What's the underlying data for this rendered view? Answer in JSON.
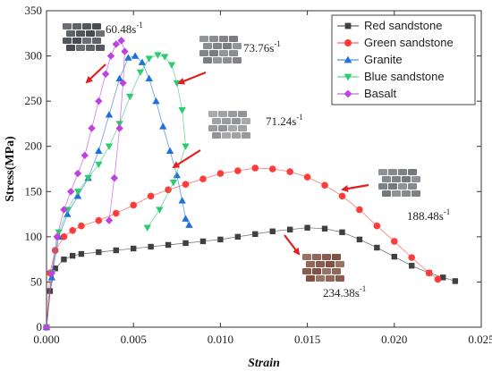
{
  "chart_data": {
    "type": "scatter",
    "title": "",
    "xlabel": "Strain",
    "ylabel": "Stress(MPa)",
    "xlim": [
      0.0,
      0.025
    ],
    "ylim": [
      0,
      350
    ],
    "xticks": [
      "0.000",
      "0.005",
      "0.010",
      "0.015",
      "0.020",
      "0.025"
    ],
    "yticks": [
      "0",
      "50",
      "100",
      "150",
      "200",
      "250",
      "300",
      "350"
    ],
    "grid": false,
    "legend_position": "top-right",
    "series": [
      {
        "name": "Red sandstone",
        "color": "#404040",
        "marker": "square",
        "x": [
          0.0,
          0.0002,
          0.0005,
          0.001,
          0.0015,
          0.002,
          0.003,
          0.004,
          0.005,
          0.006,
          0.007,
          0.008,
          0.009,
          0.01,
          0.011,
          0.012,
          0.013,
          0.014,
          0.015,
          0.016,
          0.017,
          0.018,
          0.019,
          0.02,
          0.021,
          0.022,
          0.0228,
          0.0235
        ],
        "y": [
          0,
          40,
          65,
          75,
          79,
          81,
          83,
          85,
          87,
          89,
          91,
          93,
          95,
          97,
          100,
          103,
          106,
          108,
          110,
          109,
          105,
          97,
          88,
          78,
          68,
          60,
          55,
          51
        ]
      },
      {
        "name": "Green sandstone",
        "color": "#ff3b3b",
        "marker": "circle",
        "x": [
          0.0,
          0.0002,
          0.0005,
          0.001,
          0.0015,
          0.002,
          0.003,
          0.004,
          0.005,
          0.006,
          0.007,
          0.008,
          0.009,
          0.01,
          0.011,
          0.012,
          0.013,
          0.014,
          0.015,
          0.016,
          0.017,
          0.018,
          0.019,
          0.02,
          0.021,
          0.022,
          0.0225
        ],
        "y": [
          0,
          60,
          85,
          100,
          107,
          112,
          118,
          126,
          135,
          145,
          152,
          158,
          164,
          170,
          173,
          176,
          175,
          172,
          166,
          157,
          145,
          130,
          112,
          95,
          77,
          60,
          53
        ]
      },
      {
        "name": "Granite",
        "color": "#1f6fe0",
        "marker": "triangle-up",
        "x": [
          0.0,
          0.0003,
          0.0007,
          0.0012,
          0.0018,
          0.0024,
          0.003,
          0.0036,
          0.0042,
          0.0047,
          0.0051,
          0.0055,
          0.0059,
          0.0063,
          0.0067,
          0.0071,
          0.0075,
          0.0078,
          0.008,
          0.0082
        ],
        "y": [
          0,
          55,
          100,
          125,
          145,
          165,
          195,
          235,
          275,
          298,
          300,
          293,
          275,
          250,
          222,
          195,
          168,
          140,
          120,
          113
        ]
      },
      {
        "name": "Blue sandstone",
        "color": "#2ecc71",
        "marker": "triangle-down",
        "x": [
          0.0,
          0.0003,
          0.0007,
          0.0012,
          0.0018,
          0.0024,
          0.003,
          0.0036,
          0.0042,
          0.0048,
          0.0054,
          0.0059,
          0.0064,
          0.0068,
          0.0072,
          0.0075,
          0.0078,
          0.008,
          0.0073,
          0.0065,
          0.0058
        ],
        "y": [
          0,
          60,
          105,
          130,
          150,
          165,
          180,
          200,
          225,
          255,
          282,
          297,
          301,
          299,
          290,
          270,
          240,
          200,
          160,
          130,
          110
        ]
      },
      {
        "name": "Basalt",
        "color": "#c040e0",
        "marker": "diamond",
        "x": [
          0.0,
          0.0003,
          0.0006,
          0.001,
          0.0014,
          0.0018,
          0.0022,
          0.0026,
          0.003,
          0.0034,
          0.0037,
          0.004,
          0.0043,
          0.0045,
          0.0044,
          0.0042,
          0.0039,
          0.0036
        ],
        "y": [
          0,
          60,
          100,
          130,
          150,
          170,
          190,
          220,
          250,
          280,
          300,
          313,
          317,
          305,
          270,
          220,
          165,
          118
        ]
      }
    ],
    "annotations": [
      {
        "text": "60.48s",
        "exponent": "-1",
        "series": "Basalt"
      },
      {
        "text": "73.76s",
        "exponent": "-1",
        "series": "Blue sandstone"
      },
      {
        "text": "71.24s",
        "exponent": "-1",
        "series": "Granite"
      },
      {
        "text": "188.48s",
        "exponent": "-1",
        "series": "Green sandstone"
      },
      {
        "text": "234.38s",
        "exponent": "-1",
        "series": "Red sandstone"
      }
    ],
    "images": [
      {
        "name": "basalt-fragments-icon",
        "color": "#3a3d44"
      },
      {
        "name": "blue-sandstone-fragments-icon",
        "color": "#6f7277"
      },
      {
        "name": "granite-fragments-icon",
        "color": "#8a8c90"
      },
      {
        "name": "green-sandstone-fragments-icon",
        "color": "#6a6f73"
      },
      {
        "name": "red-sandstone-fragments-icon",
        "color": "#7a4430"
      }
    ],
    "arrow_color": "#e02020"
  }
}
